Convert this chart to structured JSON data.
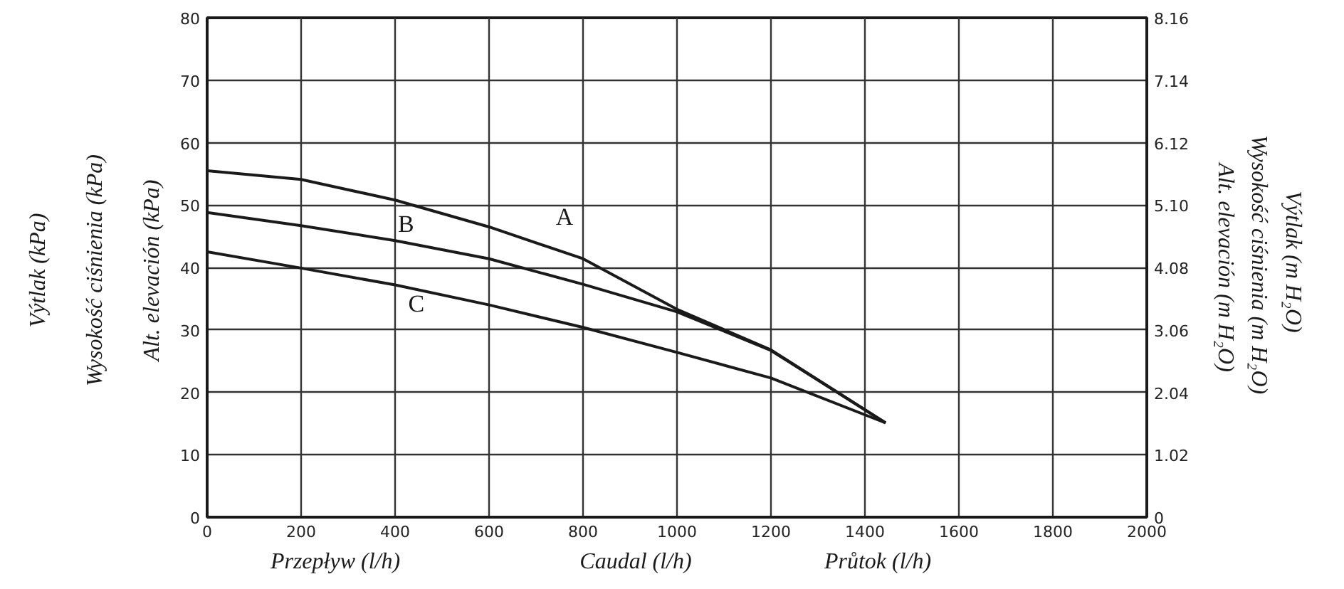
{
  "chart_data": {
    "type": "line",
    "xlabel": "Caudal (l/h)",
    "ylabel": "Alt. elevación  (kPa)",
    "y2label": "Alt. elevación (m H₂O)",
    "annotations": [
      "Výtlak  (kPa)",
      "Wysokość ciśnienia  (kPa)",
      "Przepływ  (l/h)",
      "Průtok (l/h)",
      "Wysokość ciśnienia  (m H₂O)",
      "Výtlak   (m H₂O)"
    ],
    "x": [
      0,
      200,
      400,
      600,
      800,
      1000,
      1200,
      1444
    ],
    "series": [
      {
        "name": "A",
        "color": "#1a1a1a",
        "values": [
          55.5,
          54.1,
          50.8,
          46.5,
          41.4,
          33.3,
          26.8,
          15.1
        ]
      },
      {
        "name": "B",
        "color": "#1a1a1a",
        "values": [
          48.8,
          46.7,
          44.3,
          41.4,
          37.3,
          32.9,
          26.7,
          15.1
        ]
      },
      {
        "name": "C",
        "color": "#1a1a1a",
        "values": [
          42.5,
          39.9,
          37.2,
          34.0,
          30.4,
          26.4,
          22.3,
          15.1
        ]
      }
    ],
    "xlim": [
      0,
      2000
    ],
    "xticks": [
      0,
      200,
      400,
      600,
      800,
      1000,
      1200,
      1400,
      1600,
      1800,
      2000
    ],
    "ylim": [
      0,
      80
    ],
    "yticks": [
      0,
      10,
      20,
      30,
      40,
      50,
      60,
      70,
      80
    ],
    "y2lim": [
      0,
      8.16
    ],
    "y2ticks": [
      0,
      1.02,
      2.04,
      3.06,
      4.08,
      {
        "value": 5.1,
        "label": "5.10"
      },
      6.12,
      7.14,
      8.16
    ],
    "grid": true,
    "marker": "none",
    "line_style": "solid"
  }
}
